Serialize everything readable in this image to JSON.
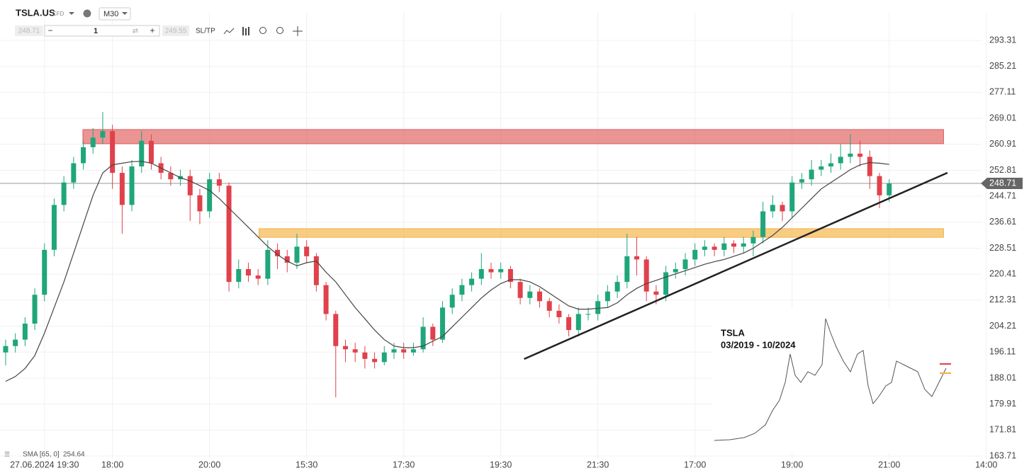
{
  "toolbar": {
    "symbol": "TSLA.US",
    "kind": "CFD",
    "timeframe": "M30",
    "bid": "248.71",
    "quantity": "1",
    "ask": "249.55",
    "sltp": "SL/TP"
  },
  "inset": {
    "title": "TSLA",
    "period": "03/2019 - 10/2024"
  },
  "chart_data": {
    "type": "candlestick",
    "x": [
      0,
      1,
      2,
      3,
      4,
      5,
      6,
      7,
      8,
      9,
      10,
      11,
      12,
      13,
      14,
      15,
      16,
      17,
      18,
      19,
      20,
      21,
      22,
      23,
      24,
      25,
      26,
      27,
      28,
      29,
      30,
      31,
      32,
      33,
      34,
      35,
      36,
      37,
      38,
      39,
      40,
      41,
      42,
      43,
      44,
      45,
      46,
      47,
      48,
      49,
      50,
      51,
      52,
      53,
      54,
      55,
      56,
      57,
      58,
      59,
      60,
      61,
      62,
      63,
      64,
      65,
      66,
      67,
      68,
      69,
      70,
      71,
      72,
      73,
      74,
      75,
      76,
      77,
      78,
      79,
      80,
      81,
      82,
      83,
      84,
      85,
      86,
      87,
      88,
      89,
      90,
      91
    ],
    "open": [
      196,
      198,
      200,
      205,
      214,
      228,
      242,
      249,
      255,
      260,
      263,
      265,
      252,
      242,
      254,
      262,
      255,
      252,
      250,
      251,
      245,
      240,
      250,
      248,
      218,
      222,
      220,
      219,
      228,
      226,
      224,
      229,
      226,
      217,
      208,
      198,
      197,
      196,
      194,
      193,
      196,
      197,
      196,
      197,
      204,
      200,
      210,
      214,
      217,
      219,
      222,
      221,
      222,
      218,
      213,
      215,
      212,
      209,
      207,
      203,
      208,
      208,
      212,
      215,
      218,
      226,
      225,
      215,
      214,
      221,
      222,
      225,
      228,
      229,
      228,
      230,
      229,
      230,
      232,
      240,
      242,
      240,
      249,
      250,
      253,
      254,
      255,
      257,
      258,
      257,
      251,
      245
    ],
    "high": [
      200,
      202,
      207,
      216,
      230,
      244,
      251,
      257,
      262,
      266,
      271,
      267,
      254,
      256,
      265,
      264,
      257,
      254,
      253,
      253,
      247,
      252,
      252,
      249,
      225,
      224,
      222,
      231,
      230,
      228,
      233,
      231,
      227,
      218,
      209,
      200,
      199,
      198,
      196,
      198,
      199,
      199,
      199,
      207,
      205,
      212,
      216,
      219,
      221,
      227,
      224,
      224,
      223,
      219,
      217,
      216,
      213,
      211,
      208,
      210,
      210,
      214,
      217,
      220,
      233,
      232,
      226,
      217,
      223,
      224,
      227,
      230,
      231,
      230,
      232,
      231,
      232,
      234,
      243,
      245,
      243,
      251,
      252,
      256,
      256,
      258,
      261,
      264,
      262,
      259,
      252,
      250
    ],
    "low": [
      192,
      196,
      198,
      203,
      212,
      226,
      240,
      247,
      253,
      258,
      261,
      247,
      233,
      240,
      252,
      253,
      250,
      248,
      248,
      237,
      236,
      238,
      246,
      215,
      216,
      218,
      217,
      217,
      222,
      221,
      222,
      224,
      215,
      206,
      182,
      193,
      193,
      191,
      191,
      192,
      194,
      194,
      195,
      196,
      198,
      199,
      208,
      212,
      215,
      217,
      219,
      219,
      216,
      211,
      211,
      210,
      207,
      205,
      201,
      201,
      206,
      206,
      210,
      213,
      216,
      220,
      212,
      211,
      212,
      219,
      220,
      223,
      226,
      226,
      226,
      227,
      227,
      226,
      230,
      238,
      237,
      238,
      247,
      248,
      251,
      252,
      253,
      255,
      254,
      247,
      241,
      243
    ],
    "close": [
      198,
      200,
      205,
      214,
      228,
      242,
      249,
      255,
      260,
      263,
      265,
      252,
      242,
      254,
      262,
      255,
      252,
      250,
      251,
      245,
      240,
      250,
      248,
      218,
      222,
      220,
      219,
      228,
      226,
      224,
      229,
      226,
      217,
      208,
      198,
      197,
      196,
      194,
      193,
      196,
      197,
      196,
      197,
      204,
      200,
      210,
      214,
      217,
      219,
      222,
      221,
      222,
      218,
      213,
      215,
      212,
      209,
      207,
      203,
      208,
      208,
      212,
      215,
      218,
      226,
      225,
      215,
      214,
      221,
      222,
      225,
      228,
      229,
      228,
      230,
      229,
      230,
      232,
      240,
      242,
      240,
      249,
      250,
      253,
      254,
      255,
      257,
      258,
      257,
      251,
      245,
      248.71
    ],
    "up_color": "#1fa67a",
    "down_color": "#e0414b",
    "series": [
      {
        "name": "SMA [65, 0]",
        "color": "#444444",
        "values": [
          187,
          188.5,
          191,
          195,
          202,
          210,
          218,
          227,
          236,
          245,
          252,
          254.5,
          255,
          255.5,
          255.6,
          255,
          253.5,
          252,
          250.5,
          249.5,
          248,
          246.5,
          244,
          241,
          238,
          235,
          232,
          229,
          226.5,
          224.5,
          223,
          224,
          224.5,
          221,
          218,
          214,
          210,
          206.5,
          203,
          200,
          198,
          197.5,
          197.5,
          198,
          199.5,
          201,
          204,
          207,
          210,
          213,
          215.5,
          217.5,
          218.7,
          218.7,
          218,
          216.5,
          214.5,
          212.5,
          210.5,
          209.5,
          209.5,
          209.8,
          210,
          211.5,
          214,
          216,
          217.5,
          218.5,
          219.5,
          220.5,
          221.5,
          222.5,
          223.5,
          224.3,
          225,
          226,
          227,
          228.5,
          230.5,
          232.5,
          235,
          238,
          241,
          244,
          247,
          249,
          251,
          253,
          254.5,
          255.2,
          255,
          254.64
        ]
      }
    ],
    "zones": [
      {
        "x": [
          7.96,
          96.6
        ],
        "y": [
          261.1,
          265.5
        ],
        "color": "#e05a5a"
      },
      {
        "x": [
          26.1,
          96.6
        ],
        "y": [
          231.9,
          234.6
        ],
        "color": "#f5b041"
      }
    ],
    "trendline": {
      "x": [
        53.4,
        97
      ],
      "y": [
        193.96,
        252.03
      ],
      "color": "#222222"
    },
    "current_price": 248.71,
    "xlim": [
      -0.58,
      101.24
    ],
    "ylim": [
      162.84,
      301.92
    ],
    "xticks": [
      {
        "value": 4,
        "label": "27.06.2024 19:30"
      },
      {
        "value": 11,
        "label": "18:00"
      },
      {
        "value": 21,
        "label": "20:00"
      },
      {
        "value": 31,
        "label": "15:30"
      },
      {
        "value": 41,
        "label": "17:30"
      },
      {
        "value": 51,
        "label": "19:30"
      },
      {
        "value": 61,
        "label": "21:30"
      },
      {
        "value": 71,
        "label": "17:00"
      },
      {
        "value": 81,
        "label": "19:00"
      },
      {
        "value": 91,
        "label": "21:00"
      },
      {
        "value": 101,
        "label": "14:00"
      }
    ],
    "yticks": [
      293.31,
      285.21,
      277.11,
      269.01,
      260.91,
      252.81,
      244.71,
      236.61,
      228.51,
      220.41,
      212.31,
      204.21,
      196.11,
      188.01,
      179.91,
      171.81,
      163.71
    ],
    "grid": true
  }
}
